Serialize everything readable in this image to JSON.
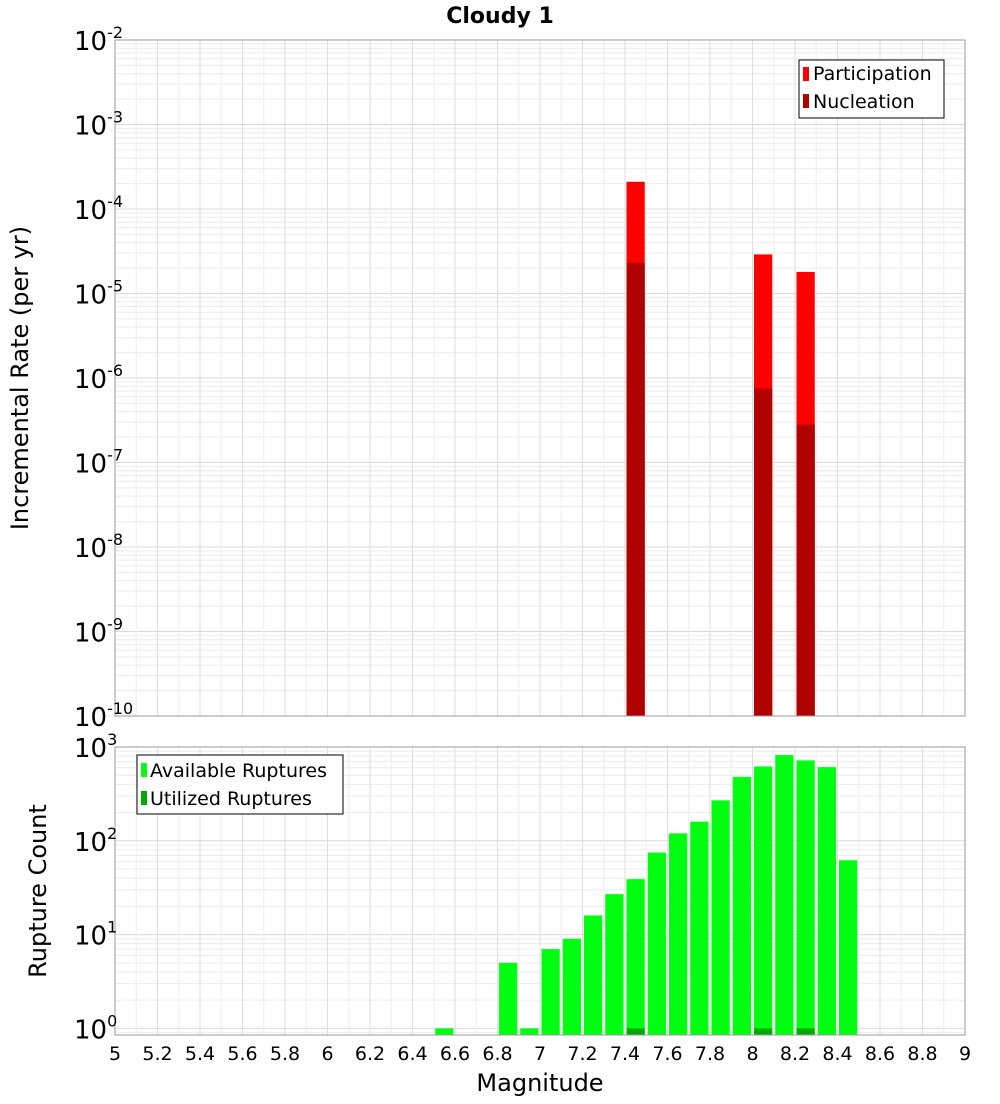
{
  "chart_data": {
    "title": "Cloudy 1",
    "xlabel": "Magnitude",
    "xlim": [
      5,
      9
    ],
    "x_ticks": [
      "5",
      "5.2",
      "5.4",
      "5.6",
      "5.8",
      "6",
      "6.2",
      "6.4",
      "6.6",
      "6.8",
      "7",
      "7.2",
      "7.4",
      "7.6",
      "7.8",
      "8",
      "8.2",
      "8.4",
      "8.6",
      "8.8",
      "9"
    ],
    "x_tick_values": [
      5,
      5.2,
      5.4,
      5.6,
      5.8,
      6,
      6.2,
      6.4,
      6.6,
      6.8,
      7,
      7.2,
      7.4,
      7.6,
      7.8,
      8,
      8.2,
      8.4,
      8.6,
      8.8,
      9
    ],
    "bar_width": 0.1,
    "panels": [
      {
        "type": "bar",
        "ylabel": "Incremental Rate (per yr)",
        "yscale": "log",
        "ylim": [
          1e-10,
          0.01
        ],
        "y_tick_exponents": [
          -10,
          -9,
          -8,
          -7,
          -6,
          -5,
          -4,
          -3,
          -2
        ],
        "grid": true,
        "legend_position": "top-right",
        "series": [
          {
            "name": "Participation",
            "color": "#ff0000",
            "x": [
              7.45,
              8.05,
              8.25
            ],
            "values": [
              0.00021,
              2.9e-05,
              1.8e-05
            ]
          },
          {
            "name": "Nucleation",
            "color": "#b00000",
            "x": [
              7.45,
              8.05,
              8.25
            ],
            "values": [
              2.3e-05,
              7.5e-07,
              2.8e-07
            ]
          }
        ]
      },
      {
        "type": "bar",
        "ylabel": "Rupture Count",
        "yscale": "log",
        "ylim": [
          0.85,
          1000
        ],
        "y_tick_exponents": [
          0,
          1,
          2,
          3
        ],
        "grid": true,
        "legend_position": "top-left",
        "series": [
          {
            "name": "Available Ruptures",
            "color": "#00ff11",
            "x": [
              6.55,
              6.85,
              6.95,
              7.05,
              7.15,
              7.25,
              7.35,
              7.45,
              7.55,
              7.65,
              7.75,
              7.85,
              7.95,
              8.05,
              8.15,
              8.25,
              8.35,
              8.45
            ],
            "values": [
              1,
              5,
              1,
              7,
              9,
              16,
              27,
              39,
              75,
              120,
              160,
              270,
              480,
              620,
              820,
              720,
              610,
              62
            ]
          },
          {
            "name": "Utilized Ruptures",
            "color": "#00aa00",
            "x": [
              7.45,
              8.05,
              8.25
            ],
            "values": [
              1,
              1,
              1
            ]
          }
        ]
      }
    ]
  }
}
